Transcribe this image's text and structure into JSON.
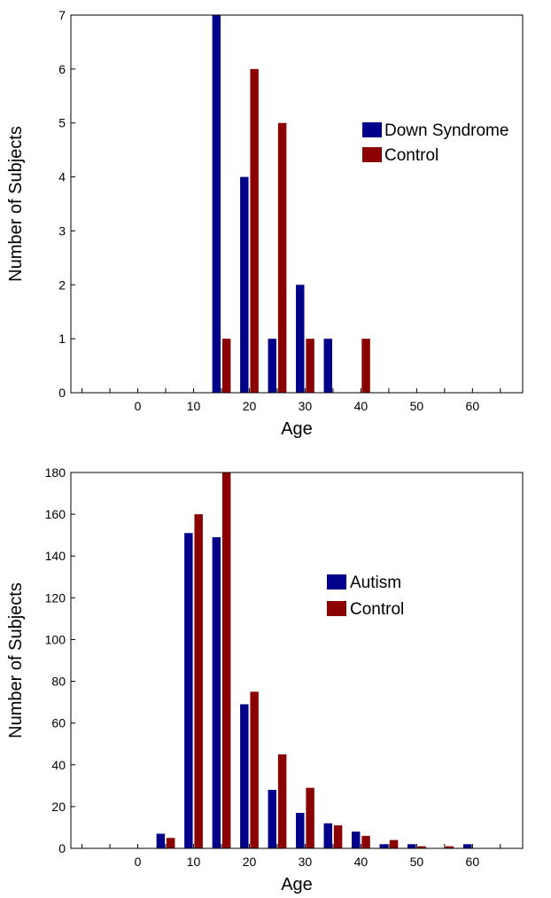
{
  "chart_data": [
    {
      "type": "bar",
      "xlabel": "Age",
      "ylabel": "Number of Subjects",
      "xlim": [
        -12,
        69
      ],
      "ylim": [
        0,
        7
      ],
      "xticks": [
        0,
        10,
        20,
        30,
        40,
        50,
        60
      ],
      "yticks": [
        0,
        1,
        2,
        3,
        4,
        5,
        6,
        7
      ],
      "bin_centers": [
        15,
        20,
        25,
        30,
        35,
        40
      ],
      "legend_position": "right",
      "series": [
        {
          "name": "Down Syndrome",
          "color": "#00008b",
          "values": [
            7,
            4,
            1,
            2,
            1,
            0
          ]
        },
        {
          "name": "Control",
          "color": "#8b0000",
          "values": [
            1,
            6,
            5,
            1,
            0,
            1
          ]
        }
      ]
    },
    {
      "type": "bar",
      "xlabel": "Age",
      "ylabel": "Number of Subjects",
      "xlim": [
        -12,
        69
      ],
      "ylim": [
        0,
        180
      ],
      "xticks": [
        0,
        10,
        20,
        30,
        40,
        50,
        60
      ],
      "yticks": [
        0,
        20,
        40,
        60,
        80,
        100,
        120,
        140,
        160,
        180
      ],
      "bin_centers": [
        5,
        10,
        15,
        20,
        25,
        30,
        35,
        40,
        45,
        50,
        55,
        60
      ],
      "legend_position": "right",
      "series": [
        {
          "name": "Autism",
          "color": "#00008b",
          "values": [
            7,
            151,
            149,
            69,
            28,
            17,
            12,
            8,
            2,
            2,
            0,
            2
          ]
        },
        {
          "name": "Control",
          "color": "#8b0000",
          "values": [
            5,
            160,
            180,
            75,
            45,
            29,
            11,
            6,
            4,
            1,
            1,
            0
          ]
        }
      ]
    }
  ]
}
